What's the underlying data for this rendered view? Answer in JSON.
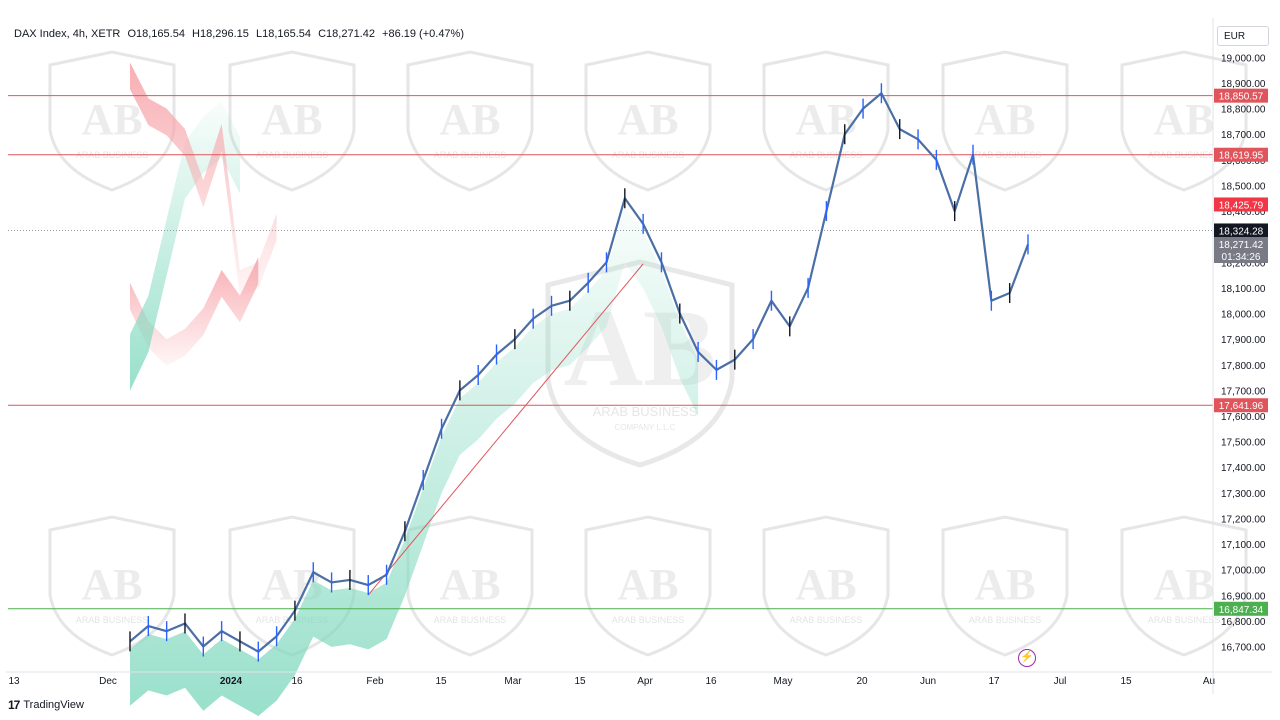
{
  "header": {
    "symbol": "DAX Index, 4h, XETR",
    "open": "O18,165.54",
    "high": "H18,296.15",
    "low": "L18,165.54",
    "close": "C18,271.42",
    "change": "+86.19 (+0.47%)"
  },
  "currency": "EUR",
  "footer": {
    "brand": "TradingView"
  },
  "watermark": {
    "logo": "AB",
    "text": "ARAB BUSINESS",
    "subtext": "COMPANY L.L.C"
  },
  "colors": {
    "up": "#2962ff",
    "candle": "#4a6fa5",
    "resistance": "#e0545c",
    "support": "#4caf50",
    "cloud_red": "#f7a6ab",
    "cloud_green": "#7fd8bd",
    "last_price_bg": "#131722",
    "prev_price_bg": "#787b86"
  },
  "chart_data": {
    "type": "line",
    "title": "DAX Index, 4h, XETR",
    "ylim": [
      16630,
      19100
    ],
    "y_ticks": [
      "19,000.00",
      "18,900.00",
      "18,800.00",
      "18,700.00",
      "18,600.00",
      "18,500.00",
      "18,400.00",
      "18,300.00",
      "18,200.00",
      "18,100.00",
      "18,000.00",
      "17,900.00",
      "17,800.00",
      "17,700.00",
      "17,600.00",
      "17,500.00",
      "17,400.00",
      "17,300.00",
      "17,200.00",
      "17,100.00",
      "17,000.00",
      "16,900.00",
      "16,800.00",
      "16,700.00"
    ],
    "x_ticks": [
      "13",
      "Dec",
      "2024",
      "16",
      "Feb",
      "15",
      "Mar",
      "15",
      "Apr",
      "16",
      "May",
      "20",
      "Jun",
      "17",
      "Jul",
      "15",
      "Au"
    ],
    "price_series": {
      "name": "DAX 4h close (approx.)",
      "x": [
        "Nov 13",
        "Nov 27",
        "Dec 1",
        "Dec 6",
        "Dec 11",
        "Dec 15",
        "Dec 20",
        "Dec 27",
        "Jan 2",
        "Jan 8",
        "Jan 12",
        "Jan 16",
        "Jan 20",
        "Jan 24",
        "Jan 30",
        "Feb 2",
        "Feb 7",
        "Feb 12",
        "Feb 16",
        "Feb 21",
        "Feb 26",
        "Mar 1",
        "Mar 6",
        "Mar 11",
        "Mar 15",
        "Mar 20",
        "Mar 26",
        "Mar 28",
        "Apr 2",
        "Apr 8",
        "Apr 12",
        "Apr 16",
        "Apr 19",
        "Apr 23",
        "Apr 26",
        "Apr 30",
        "May 3",
        "May 8",
        "May 13",
        "May 15",
        "May 20",
        "May 24",
        "May 29",
        "Jun 3",
        "Jun 6",
        "Jun 11",
        "Jun 13",
        "Jun 17",
        "Jun 21",
        "Jun 24"
      ],
      "y": [
        16720,
        16780,
        16760,
        16790,
        16700,
        16760,
        16720,
        16680,
        16740,
        16840,
        16990,
        16950,
        16960,
        16940,
        16980,
        17150,
        17350,
        17550,
        17700,
        17760,
        17840,
        17900,
        17980,
        18030,
        18050,
        18120,
        18200,
        18450,
        18350,
        18200,
        18000,
        17850,
        17780,
        17820,
        17900,
        18050,
        17950,
        18100,
        18400,
        18700,
        18800,
        18860,
        18720,
        18680,
        18600,
        18400,
        18620,
        18050,
        18080,
        18270
      ]
    },
    "levels": [
      {
        "label": "18,850.57",
        "value": 18850.57,
        "kind": "resistance"
      },
      {
        "label": "18,619.95",
        "value": 18619.95,
        "kind": "resistance"
      },
      {
        "label": "18,425.79",
        "value": 18425.79,
        "kind": "cloud"
      },
      {
        "label": "17,641.96",
        "value": 17641.96,
        "kind": "resistance"
      },
      {
        "label": "16,847.34",
        "value": 16847.34,
        "kind": "support"
      }
    ],
    "last_price": {
      "label": "18,324.28",
      "value": 18324.28
    },
    "current_price": {
      "label": "18,271.42",
      "value": 18271.42
    },
    "countdown": "01:34:26",
    "grid": false
  }
}
